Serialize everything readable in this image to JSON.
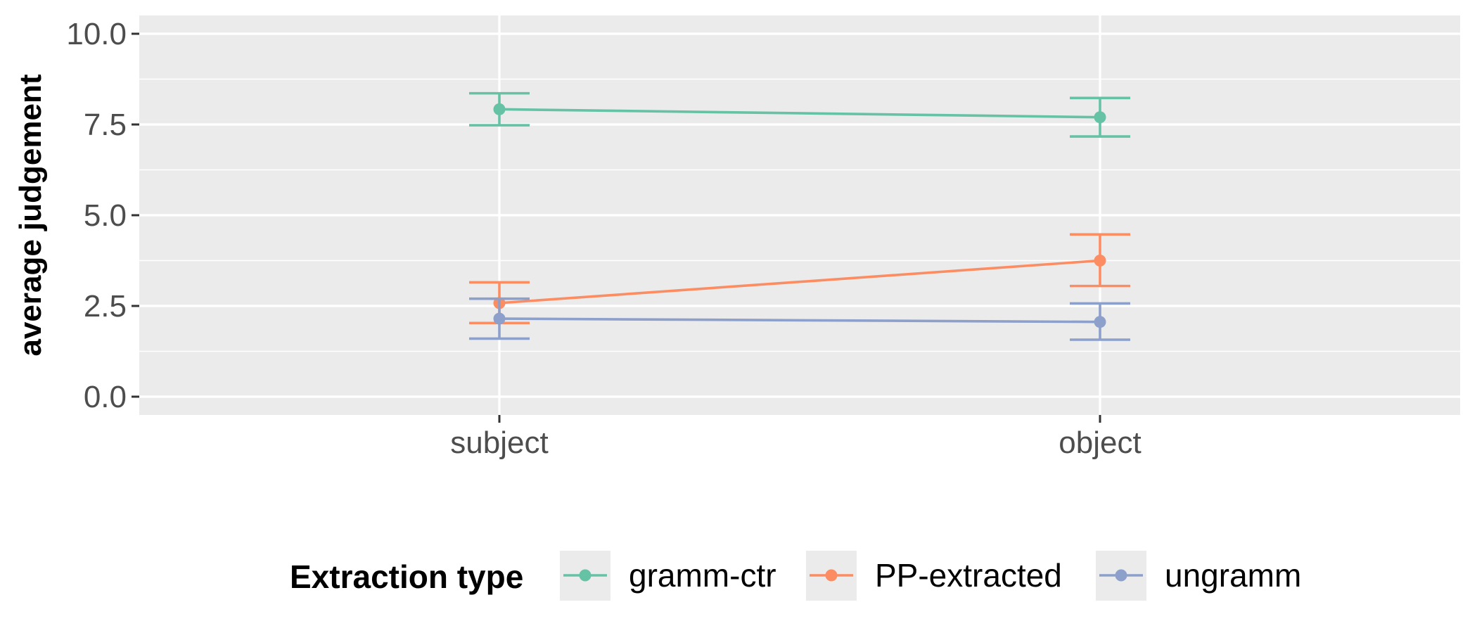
{
  "chart_data": {
    "type": "line",
    "title": "",
    "xlabel": "",
    "ylabel": "average judgement",
    "categories": [
      "subject",
      "object"
    ],
    "ylim": [
      -0.55,
      10.45
    ],
    "yticks": [
      "0.0",
      "2.5",
      "5.0",
      "7.5",
      "10.0"
    ],
    "ytick_values": [
      0,
      2.5,
      5,
      7.5,
      10
    ],
    "grid": true,
    "legend": {
      "title": "Extraction type",
      "position": "bottom"
    },
    "series": [
      {
        "name": "gramm-ctr",
        "color": "#66c2a5",
        "values": [
          7.92,
          7.7
        ],
        "lower": [
          7.48,
          7.17
        ],
        "upper": [
          8.36,
          8.23
        ]
      },
      {
        "name": "PP-extracted",
        "color": "#fc8d62",
        "values": [
          2.58,
          3.75
        ],
        "lower": [
          2.03,
          3.05
        ],
        "upper": [
          3.15,
          4.47
        ]
      },
      {
        "name": "ungramm",
        "color": "#8da0cb",
        "values": [
          2.15,
          2.06
        ],
        "lower": [
          1.6,
          1.57
        ],
        "upper": [
          2.7,
          2.57
        ]
      }
    ]
  }
}
